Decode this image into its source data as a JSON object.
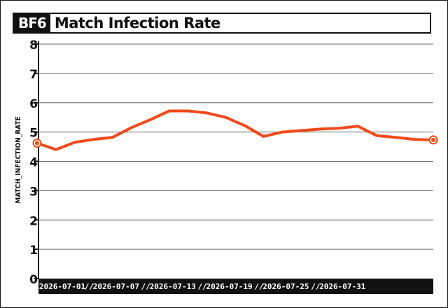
{
  "header": {
    "logo": "BF6",
    "title": "Match Infection Rate"
  },
  "colors": {
    "line": "#f04a1a",
    "axis": "#111111",
    "grid": "#666666",
    "background": "#ffffff"
  },
  "chart_data": {
    "type": "line",
    "title": "Match Infection Rate",
    "xlabel": "",
    "ylabel": "MATCH_INFECTION_RATE",
    "ylim": [
      0,
      8
    ],
    "yticks": [
      0,
      1,
      2,
      3,
      4,
      5,
      6,
      7,
      8
    ],
    "grid": true,
    "x": [
      "2026-07-01",
      "2026-07-03",
      "2026-07-05",
      "2026-07-07",
      "2026-07-09",
      "2026-07-11",
      "2026-07-13",
      "2026-07-15",
      "2026-07-17",
      "2026-07-19",
      "2026-07-21",
      "2026-07-23",
      "2026-07-25",
      "2026-07-27",
      "2026-07-29",
      "2026-07-31",
      "2026-08-02",
      "2026-08-04",
      "2026-08-06",
      "2026-08-08",
      "2026-08-10",
      "2026-08-12"
    ],
    "xticks": [
      "2026-07-01",
      "2026-07-07",
      "2026-07-13",
      "2026-07-19",
      "2026-07-25",
      "2026-07-31"
    ],
    "series": [
      {
        "values": [
          4.62,
          4.4,
          4.65,
          4.75,
          4.82,
          5.15,
          5.42,
          5.72,
          5.72,
          5.65,
          5.5,
          5.22,
          4.85,
          5.0,
          5.05,
          5.1,
          5.13,
          5.2,
          4.88,
          4.82,
          4.75,
          4.73
        ]
      }
    ]
  }
}
